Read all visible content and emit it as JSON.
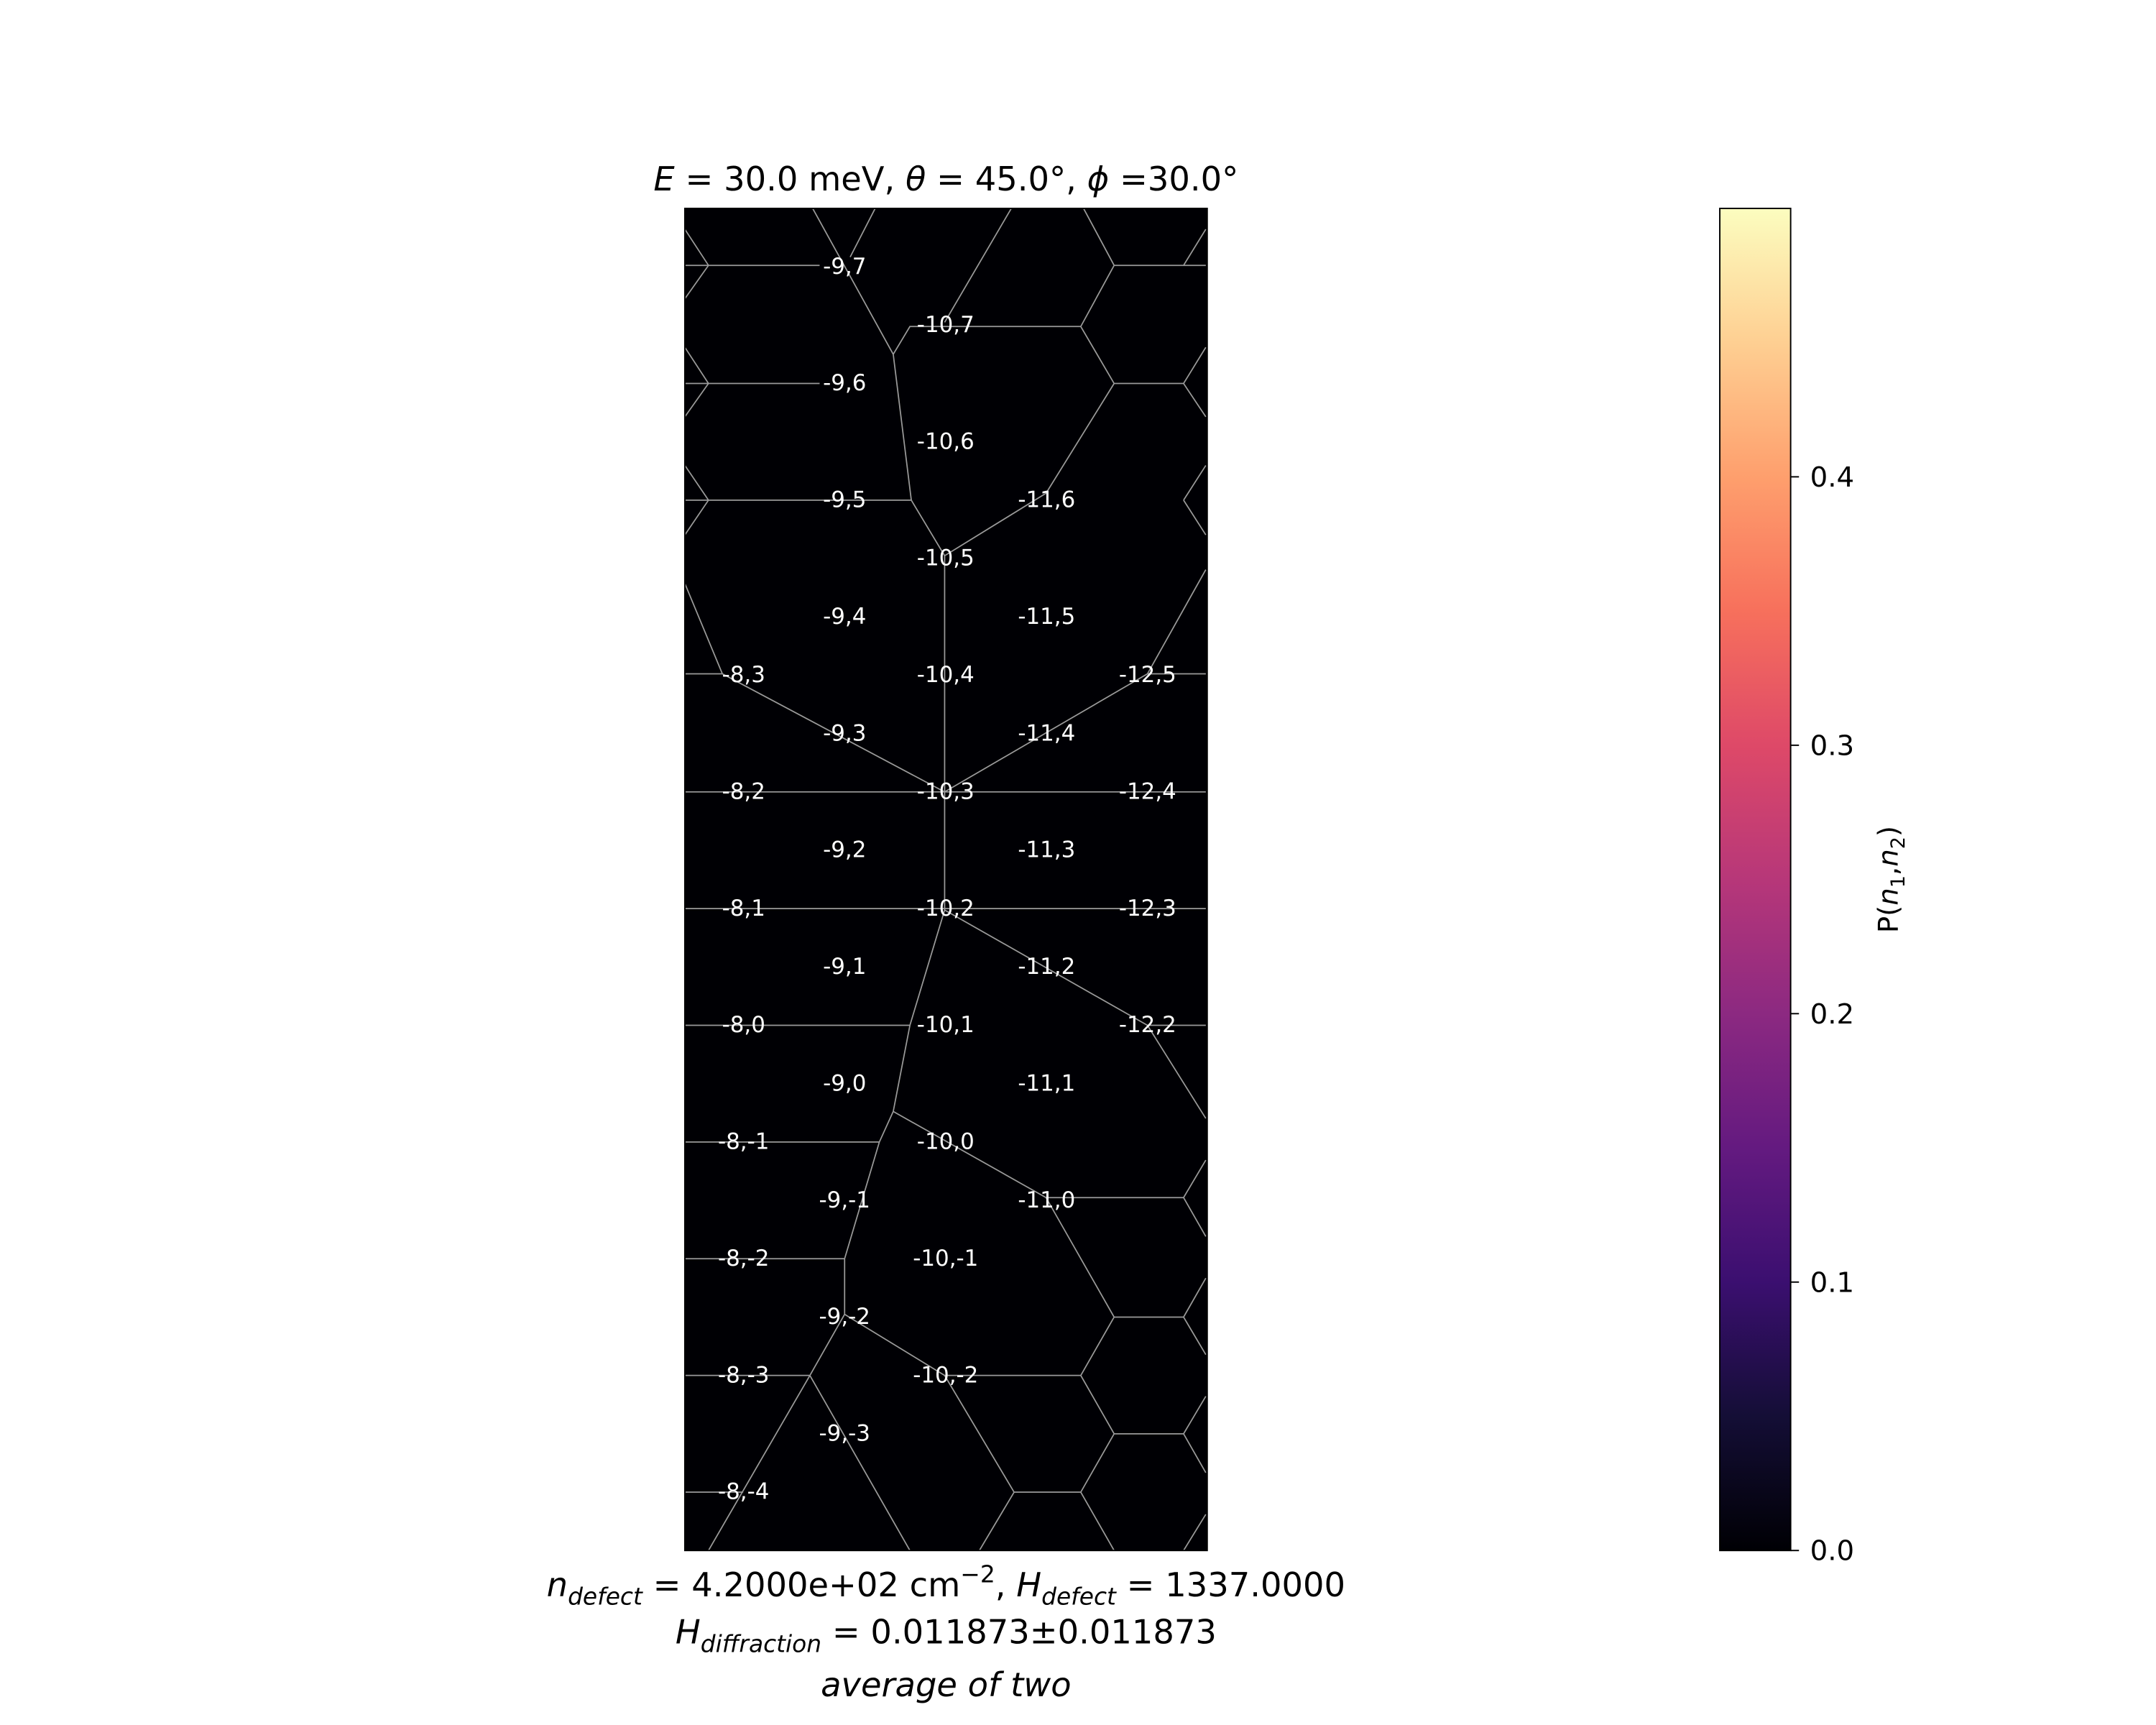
{
  "chart_data": {
    "type": "voronoi",
    "title_parts": [
      "E",
      " = 30.0 meV, ",
      "θ",
      " = 45.0°, ",
      "ϕ",
      " =30.0°"
    ],
    "cells": [
      {
        "label": "-9,7",
        "value": 0
      },
      {
        "label": "-10,7",
        "value": 0
      },
      {
        "label": "-9,6",
        "value": 0
      },
      {
        "label": "-10,6",
        "value": 0
      },
      {
        "label": "-9,5",
        "value": 0
      },
      {
        "label": "-11,6",
        "value": 0
      },
      {
        "label": "-10,5",
        "value": 0
      },
      {
        "label": "-9,4",
        "value": 0
      },
      {
        "label": "-11,5",
        "value": 0
      },
      {
        "label": "-8,3",
        "value": 0
      },
      {
        "label": "-10,4",
        "value": 0
      },
      {
        "label": "-12,5",
        "value": 0
      },
      {
        "label": "-9,3",
        "value": 0
      },
      {
        "label": "-11,4",
        "value": 0
      },
      {
        "label": "-8,2",
        "value": 0
      },
      {
        "label": "-10,3",
        "value": 0
      },
      {
        "label": "-12,4",
        "value": 0
      },
      {
        "label": "-9,2",
        "value": 0
      },
      {
        "label": "-11,3",
        "value": 0
      },
      {
        "label": "-8,1",
        "value": 0
      },
      {
        "label": "-10,2",
        "value": 0
      },
      {
        "label": "-12,3",
        "value": 0
      },
      {
        "label": "-9,1",
        "value": 0
      },
      {
        "label": "-11,2",
        "value": 0
      },
      {
        "label": "-8,0",
        "value": 0
      },
      {
        "label": "-10,1",
        "value": 0
      },
      {
        "label": "-12,2",
        "value": 0
      },
      {
        "label": "-9,0",
        "value": 0
      },
      {
        "label": "-11,1",
        "value": 0
      },
      {
        "label": "-8,-1",
        "value": 0
      },
      {
        "label": "-10,0",
        "value": 0
      },
      {
        "label": "-9,-1",
        "value": 0
      },
      {
        "label": "-11,0",
        "value": 0
      },
      {
        "label": "-8,-2",
        "value": 0
      },
      {
        "label": "-10,-1",
        "value": 0
      },
      {
        "label": "-9,-2",
        "value": 0
      },
      {
        "label": "-8,-3",
        "value": 0
      },
      {
        "label": "-10,-2",
        "value": 0
      },
      {
        "label": "-9,-3",
        "value": 0
      },
      {
        "label": "-8,-4",
        "value": 0
      }
    ],
    "colorbar": {
      "label_parts": [
        "P(",
        "n",
        "1",
        ",",
        "n",
        "2",
        ")"
      ],
      "colormap": "magma",
      "clim": [
        0,
        0.5
      ],
      "ticks": [
        {
          "value": 0,
          "label": "0.0"
        },
        0.1,
        0.2,
        0.3,
        0.4
      ]
    },
    "footer": [
      [
        "n",
        "defect",
        " = 4.2000e+02 cm",
        "−2",
        ", ",
        "H",
        "defect",
        " = 1337.0000"
      ],
      [
        "H",
        "diffraction",
        " = 0.011873±0.011873"
      ],
      [
        "average of two"
      ]
    ]
  }
}
